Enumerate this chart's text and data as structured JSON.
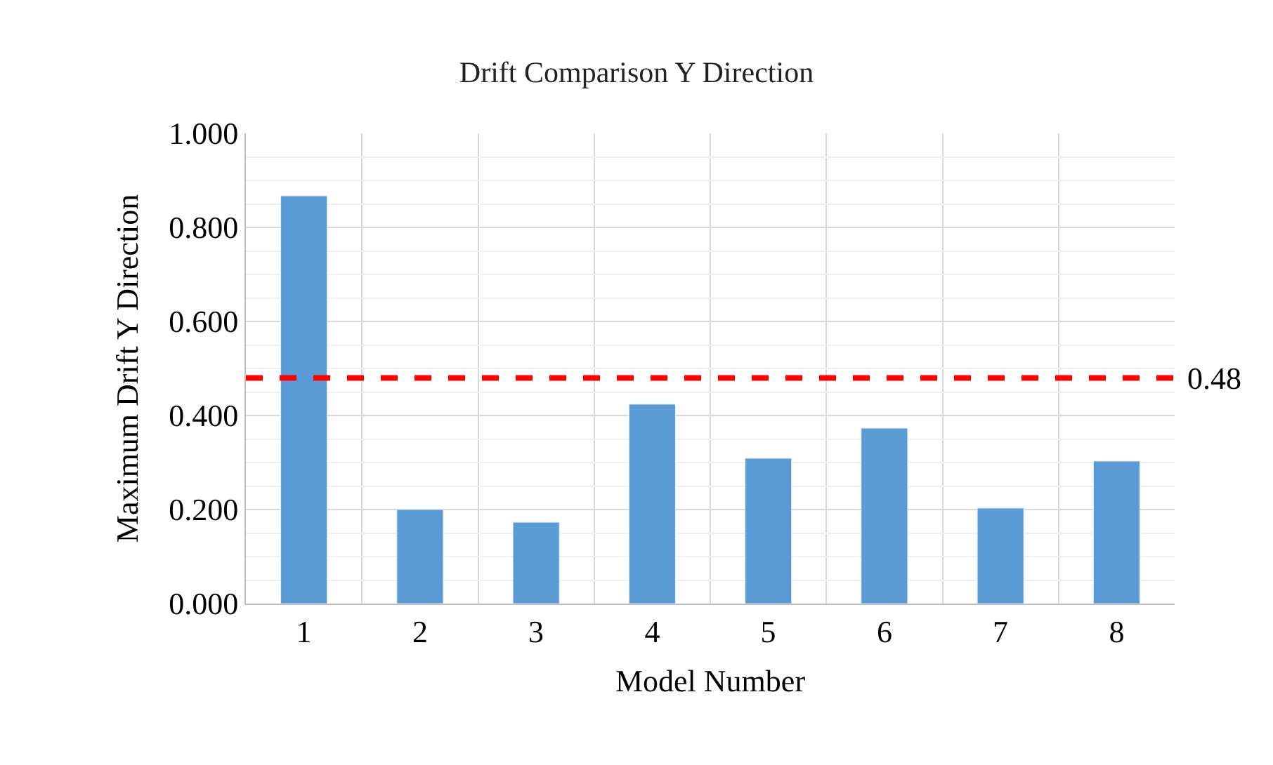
{
  "chart_data": {
    "type": "bar",
    "title": "Drift Comparison Y Direction",
    "xlabel": "Model Number",
    "ylabel": "Maximum Drift Y Direction",
    "categories": [
      "1",
      "2",
      "3",
      "4",
      "5",
      "6",
      "7",
      "8"
    ],
    "values": [
      0.867,
      0.2,
      0.173,
      0.424,
      0.309,
      0.373,
      0.203,
      0.303
    ],
    "color": "#5b9bd5",
    "ylim": [
      0,
      1
    ],
    "yticks": [
      {
        "value": 0,
        "label": "0.000"
      },
      {
        "value": 0.2,
        "label": "0.200"
      },
      {
        "value": 0.4,
        "label": "0.400"
      },
      {
        "value": 0.6,
        "label": "0.600"
      },
      {
        "value": 0.8,
        "label": "0.800"
      },
      {
        "value": 1,
        "label": "1.000"
      }
    ],
    "grid": true,
    "ref_lines": [
      {
        "axis": "y",
        "value": 0.48,
        "label": "0.48",
        "color": "#ff0000",
        "line_style": "dashed"
      }
    ]
  }
}
